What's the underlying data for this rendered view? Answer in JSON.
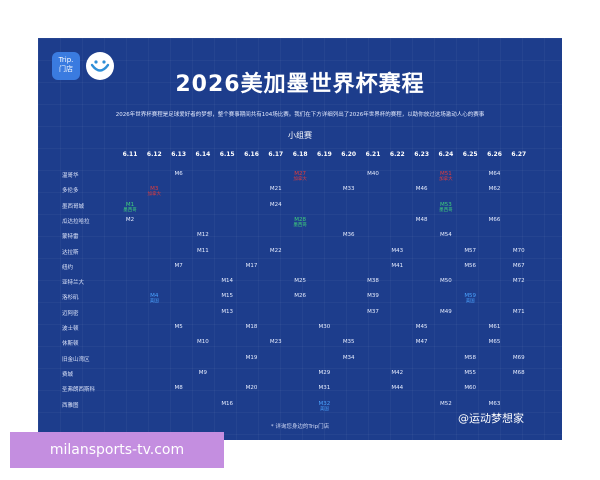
{
  "logo": {
    "trip_text_1": "Trip.",
    "trip_text_2": "门店"
  },
  "title": "2026美加墨世界杯赛程",
  "subtitle": "2026年世界杯赛程是足球爱好者的梦想，整个赛事期间共有104场比赛。我们在下方详细列出了2026年世界杯的赛程，以助你放过这场激动人心的赛事",
  "group_stage": "小组赛",
  "dates": [
    "6.11",
    "6.12",
    "6.13",
    "6.14",
    "6.15",
    "6.16",
    "6.17",
    "6.18",
    "6.19",
    "6.20",
    "6.21",
    "6.22",
    "6.23",
    "6.24",
    "6.25",
    "6.26",
    "6.27"
  ],
  "cities": [
    "温哥华",
    "多伦多",
    "墨西哥城",
    "瓜达拉哈拉",
    "蒙特雷",
    "达拉斯",
    "纽约",
    "亚特兰大",
    "洛杉矶",
    "迈阿密",
    "波士顿",
    "休斯顿",
    "旧金山湾区",
    "费城",
    "圣弗朗西斯科",
    "西雅图"
  ],
  "matches": [
    {
      "city": 0,
      "date": 2,
      "label": "M6",
      "color": "#e8eeff",
      "sub": ""
    },
    {
      "city": 0,
      "date": 7,
      "label": "M27",
      "color": "#e23b3b",
      "sub": "加拿大"
    },
    {
      "city": 0,
      "date": 10,
      "label": "M40",
      "color": "#e8eeff",
      "sub": ""
    },
    {
      "city": 0,
      "date": 13,
      "label": "M51",
      "color": "#e23b3b",
      "sub": "加拿大"
    },
    {
      "city": 0,
      "date": 15,
      "label": "M64",
      "color": "#e8eeff",
      "sub": ""
    },
    {
      "city": 1,
      "date": 1,
      "label": "M3",
      "color": "#e23b3b",
      "sub": "加拿大"
    },
    {
      "city": 1,
      "date": 6,
      "label": "M21",
      "color": "#e8eeff",
      "sub": ""
    },
    {
      "city": 1,
      "date": 9,
      "label": "M33",
      "color": "#e8eeff",
      "sub": ""
    },
    {
      "city": 1,
      "date": 12,
      "label": "M46",
      "color": "#e8eeff",
      "sub": ""
    },
    {
      "city": 1,
      "date": 15,
      "label": "M62",
      "color": "#e8eeff",
      "sub": ""
    },
    {
      "city": 2,
      "date": 0,
      "label": "M1",
      "color": "#3fd17a",
      "sub": "墨西哥"
    },
    {
      "city": 2,
      "date": 6,
      "label": "M24",
      "color": "#e8eeff",
      "sub": ""
    },
    {
      "city": 2,
      "date": 13,
      "label": "M53",
      "color": "#3fd17a",
      "sub": "墨西哥"
    },
    {
      "city": 3,
      "date": 0,
      "label": "M2",
      "color": "#e8eeff",
      "sub": ""
    },
    {
      "city": 3,
      "date": 7,
      "label": "M28",
      "color": "#3fd17a",
      "sub": "墨西哥"
    },
    {
      "city": 3,
      "date": 12,
      "label": "M48",
      "color": "#e8eeff",
      "sub": ""
    },
    {
      "city": 3,
      "date": 15,
      "label": "M66",
      "color": "#e8eeff",
      "sub": ""
    },
    {
      "city": 4,
      "date": 3,
      "label": "M12",
      "color": "#e8eeff",
      "sub": ""
    },
    {
      "city": 4,
      "date": 9,
      "label": "M36",
      "color": "#e8eeff",
      "sub": ""
    },
    {
      "city": 4,
      "date": 13,
      "label": "M54",
      "color": "#e8eeff",
      "sub": ""
    },
    {
      "city": 5,
      "date": 3,
      "label": "M11",
      "color": "#e8eeff",
      "sub": ""
    },
    {
      "city": 5,
      "date": 6,
      "label": "M22",
      "color": "#e8eeff",
      "sub": ""
    },
    {
      "city": 5,
      "date": 11,
      "label": "M43",
      "color": "#e8eeff",
      "sub": ""
    },
    {
      "city": 5,
      "date": 14,
      "label": "M57",
      "color": "#e8eeff",
      "sub": ""
    },
    {
      "city": 5,
      "date": 16,
      "label": "M70",
      "color": "#e8eeff",
      "sub": ""
    },
    {
      "city": 6,
      "date": 2,
      "label": "M7",
      "color": "#e8eeff",
      "sub": ""
    },
    {
      "city": 6,
      "date": 5,
      "label": "M17",
      "color": "#e8eeff",
      "sub": ""
    },
    {
      "city": 6,
      "date": 11,
      "label": "M41",
      "color": "#e8eeff",
      "sub": ""
    },
    {
      "city": 6,
      "date": 14,
      "label": "M56",
      "color": "#e8eeff",
      "sub": ""
    },
    {
      "city": 6,
      "date": 16,
      "label": "M67",
      "color": "#e8eeff",
      "sub": ""
    },
    {
      "city": 7,
      "date": 4,
      "label": "M14",
      "color": "#e8eeff",
      "sub": ""
    },
    {
      "city": 7,
      "date": 7,
      "label": "M25",
      "color": "#e8eeff",
      "sub": ""
    },
    {
      "city": 7,
      "date": 10,
      "label": "M38",
      "color": "#e8eeff",
      "sub": ""
    },
    {
      "city": 7,
      "date": 13,
      "label": "M50",
      "color": "#e8eeff",
      "sub": ""
    },
    {
      "city": 7,
      "date": 16,
      "label": "M72",
      "color": "#e8eeff",
      "sub": ""
    },
    {
      "city": 8,
      "date": 1,
      "label": "M4",
      "color": "#4aa3ff",
      "sub": "美国"
    },
    {
      "city": 8,
      "date": 4,
      "label": "M15",
      "color": "#e8eeff",
      "sub": ""
    },
    {
      "city": 8,
      "date": 7,
      "label": "M26",
      "color": "#e8eeff",
      "sub": ""
    },
    {
      "city": 8,
      "date": 10,
      "label": "M39",
      "color": "#e8eeff",
      "sub": ""
    },
    {
      "city": 8,
      "date": 14,
      "label": "M59",
      "color": "#4aa3ff",
      "sub": "美国"
    },
    {
      "city": 9,
      "date": 4,
      "label": "M13",
      "color": "#e8eeff",
      "sub": ""
    },
    {
      "city": 9,
      "date": 10,
      "label": "M37",
      "color": "#e8eeff",
      "sub": ""
    },
    {
      "city": 9,
      "date": 13,
      "label": "M49",
      "color": "#e8eeff",
      "sub": ""
    },
    {
      "city": 9,
      "date": 16,
      "label": "M71",
      "color": "#e8eeff",
      "sub": ""
    },
    {
      "city": 10,
      "date": 2,
      "label": "M5",
      "color": "#e8eeff",
      "sub": ""
    },
    {
      "city": 10,
      "date": 5,
      "label": "M18",
      "color": "#e8eeff",
      "sub": ""
    },
    {
      "city": 10,
      "date": 8,
      "label": "M30",
      "color": "#e8eeff",
      "sub": ""
    },
    {
      "city": 10,
      "date": 12,
      "label": "M45",
      "color": "#e8eeff",
      "sub": ""
    },
    {
      "city": 10,
      "date": 15,
      "label": "M61",
      "color": "#e8eeff",
      "sub": ""
    },
    {
      "city": 11,
      "date": 3,
      "label": "M10",
      "color": "#e8eeff",
      "sub": ""
    },
    {
      "city": 11,
      "date": 6,
      "label": "M23",
      "color": "#e8eeff",
      "sub": ""
    },
    {
      "city": 11,
      "date": 9,
      "label": "M35",
      "color": "#e8eeff",
      "sub": ""
    },
    {
      "city": 11,
      "date": 12,
      "label": "M47",
      "color": "#e8eeff",
      "sub": ""
    },
    {
      "city": 11,
      "date": 15,
      "label": "M65",
      "color": "#e8eeff",
      "sub": ""
    },
    {
      "city": 12,
      "date": 5,
      "label": "M19",
      "color": "#e8eeff",
      "sub": ""
    },
    {
      "city": 12,
      "date": 9,
      "label": "M34",
      "color": "#e8eeff",
      "sub": ""
    },
    {
      "city": 12,
      "date": 14,
      "label": "M58",
      "color": "#e8eeff",
      "sub": ""
    },
    {
      "city": 12,
      "date": 16,
      "label": "M69",
      "color": "#e8eeff",
      "sub": ""
    },
    {
      "city": 13,
      "date": 3,
      "label": "M9",
      "color": "#e8eeff",
      "sub": ""
    },
    {
      "city": 13,
      "date": 8,
      "label": "M29",
      "color": "#e8eeff",
      "sub": ""
    },
    {
      "city": 13,
      "date": 11,
      "label": "M42",
      "color": "#e8eeff",
      "sub": ""
    },
    {
      "city": 13,
      "date": 14,
      "label": "M55",
      "color": "#e8eeff",
      "sub": ""
    },
    {
      "city": 13,
      "date": 16,
      "label": "M68",
      "color": "#e8eeff",
      "sub": ""
    },
    {
      "city": 14,
      "date": 2,
      "label": "M8",
      "color": "#e8eeff",
      "sub": ""
    },
    {
      "city": 14,
      "date": 5,
      "label": "M20",
      "color": "#e8eeff",
      "sub": ""
    },
    {
      "city": 14,
      "date": 8,
      "label": "M31",
      "color": "#e8eeff",
      "sub": ""
    },
    {
      "city": 14,
      "date": 11,
      "label": "M44",
      "color": "#e8eeff",
      "sub": ""
    },
    {
      "city": 14,
      "date": 14,
      "label": "M60",
      "color": "#e8eeff",
      "sub": ""
    },
    {
      "city": 15,
      "date": 4,
      "label": "M16",
      "color": "#e8eeff",
      "sub": ""
    },
    {
      "city": 15,
      "date": 8,
      "label": "M32",
      "color": "#4aa3ff",
      "sub": "美国"
    },
    {
      "city": 15,
      "date": 13,
      "label": "M52",
      "color": "#e8eeff",
      "sub": ""
    },
    {
      "city": 15,
      "date": 15,
      "label": "M63",
      "color": "#e8eeff",
      "sub": ""
    }
  ],
  "footnote": "* 详询您身边的Trip门店",
  "weibo_handle": "@运动梦想家",
  "watermark": "milansports-tv.com"
}
